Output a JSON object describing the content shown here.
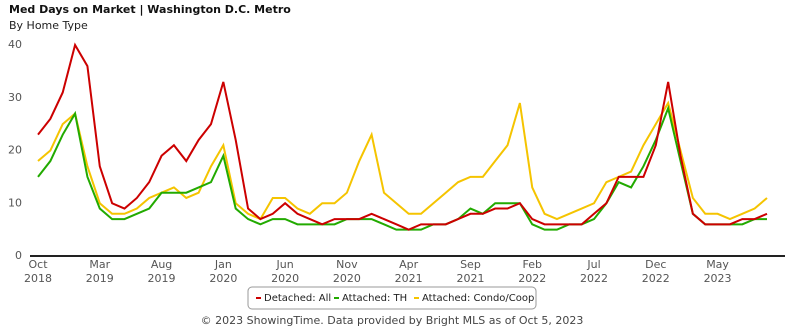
{
  "chart_data": {
    "type": "line",
    "title": "Med Days on Market | Washington D.C. Metro",
    "subtitle": "By Home Type",
    "footer": "© 2023 ShowingTime. Data provided by Bright MLS as of Oct 5, 2023",
    "categories": [
      "Oct 2018",
      null,
      null,
      null,
      null,
      "Mar 2019",
      null,
      null,
      null,
      null,
      "Aug 2019",
      null,
      null,
      null,
      null,
      "Jan 2020",
      null,
      null,
      null,
      null,
      "Jun 2020",
      null,
      null,
      null,
      null,
      "Nov 2020",
      null,
      null,
      null,
      null,
      "Apr 2021",
      null,
      null,
      null,
      null,
      "Sep 2021",
      null,
      null,
      null,
      null,
      "Feb 2022",
      null,
      null,
      null,
      null,
      "Jul 2022",
      null,
      null,
      null,
      null,
      "Dec 2022",
      null,
      null,
      null,
      null,
      "May 2023",
      null,
      null,
      null,
      null
    ],
    "series": [
      {
        "name": "Detached: All",
        "color": "#cc0000",
        "values": [
          23,
          26,
          31,
          40,
          36,
          17,
          10,
          9,
          11,
          14,
          19,
          21,
          18,
          22,
          25,
          33,
          22,
          9,
          7,
          8,
          10,
          8,
          7,
          6,
          7,
          7,
          7,
          8,
          7,
          6,
          5,
          6,
          6,
          6,
          7,
          8,
          8,
          9,
          9,
          10,
          7,
          6,
          6,
          6,
          6,
          8,
          10,
          15,
          15,
          15,
          21,
          33,
          19,
          8,
          6,
          6,
          6,
          7,
          7,
          8
        ]
      },
      {
        "name": "Attached: TH",
        "color": "#22aa00",
        "values": [
          15,
          18,
          23,
          27,
          15,
          9,
          7,
          7,
          8,
          9,
          12,
          12,
          12,
          13,
          14,
          19,
          9,
          7,
          6,
          7,
          7,
          6,
          6,
          6,
          6,
          7,
          7,
          7,
          6,
          5,
          5,
          5,
          6,
          6,
          7,
          9,
          8,
          10,
          10,
          10,
          6,
          5,
          5,
          6,
          6,
          7,
          10,
          14,
          13,
          17,
          22,
          28,
          18,
          8,
          6,
          6,
          6,
          6,
          7,
          7
        ]
      },
      {
        "name": "Attached: Condo/Coop",
        "color": "#f5c400",
        "values": [
          18,
          20,
          25,
          27,
          17,
          10,
          8,
          8,
          9,
          11,
          12,
          13,
          11,
          12,
          17,
          21,
          10,
          8,
          7,
          11,
          11,
          9,
          8,
          10,
          10,
          12,
          18,
          23,
          12,
          10,
          8,
          8,
          10,
          12,
          14,
          15,
          15,
          18,
          21,
          29,
          13,
          8,
          7,
          8,
          9,
          10,
          14,
          15,
          16,
          21,
          25,
          29,
          20,
          11,
          8,
          8,
          7,
          8,
          9,
          11
        ]
      }
    ],
    "ylim": [
      0,
      40
    ],
    "yticks": [
      0,
      10,
      20,
      30,
      40
    ],
    "grid": false
  }
}
